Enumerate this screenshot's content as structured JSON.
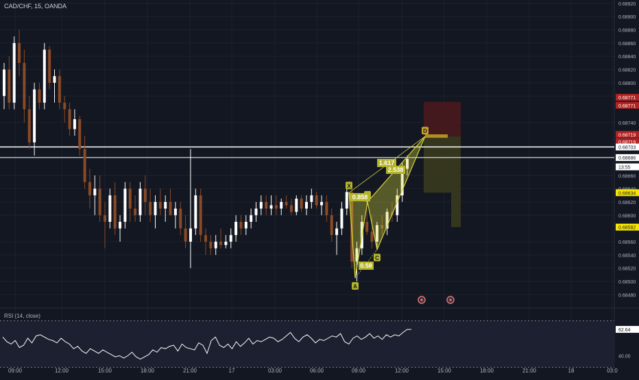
{
  "header": {
    "symbol_title": "CAD/CHF, 15, OANDA"
  },
  "rsi_panel": {
    "title": "RSI (14, close)",
    "current_label": "62.64",
    "level_label": "40.00"
  },
  "chart_data": {
    "type": "candlestick",
    "colors": {
      "background": "#131722",
      "grid": "#1e222d",
      "up": "#ffffff",
      "down": "#8b4a26",
      "pattern": "#d4d43a",
      "target_zone": "#4a1a1e",
      "stop_zone": "#3a3a1e",
      "red_tag": "#b22222",
      "yellow_tag": "#f7e600"
    },
    "x_tick_labels": [
      "09:00",
      "12:00",
      "15:00",
      "18:00",
      "21:00",
      "17",
      "03:00",
      "06:00",
      "09:00",
      "12:00",
      "15:00",
      "18:00",
      "21:00",
      "18",
      "03:0"
    ],
    "y_tick_labels": [
      "0.68920",
      "0.68900",
      "0.68880",
      "0.68860",
      "0.68840",
      "0.68820",
      "0.68800",
      "0.68780",
      "0.68740",
      "0.68660",
      "0.68640",
      "0.68620",
      "0.68600",
      "0.68560",
      "0.68540",
      "0.68520",
      "0.68500",
      "0.68480"
    ],
    "ylim": [
      0.6847,
      0.68925
    ],
    "price_tags": [
      {
        "label": "0.68771",
        "value": 0.68778,
        "style": "red"
      },
      {
        "label": "0.68771",
        "value": 0.68766,
        "style": "red"
      },
      {
        "label": "0.68719",
        "value": 0.68722,
        "style": "red"
      },
      {
        "label": "0.68719",
        "value": 0.68711,
        "style": "red"
      },
      {
        "label": "0.68703",
        "value": 0.68703,
        "style": "light"
      },
      {
        "label": "0.68686",
        "value": 0.68687,
        "style": "light"
      },
      {
        "label": "13:55",
        "value": 0.68673,
        "style": "light"
      },
      {
        "label": "0.68634",
        "value": 0.68634,
        "style": "yellow"
      },
      {
        "label": "0.68582",
        "value": 0.68582,
        "style": "yellow"
      }
    ],
    "horizontal_lines": [
      {
        "value": 0.68703,
        "width": 1.5
      },
      {
        "value": 0.68687,
        "width": 1
      }
    ],
    "candles": [
      [
        0.6878,
        0.6883,
        0.6876,
        0.6882
      ],
      [
        0.6882,
        0.6884,
        0.6876,
        0.6877
      ],
      [
        0.6877,
        0.6887,
        0.6876,
        0.6886
      ],
      [
        0.6886,
        0.6888,
        0.6881,
        0.6883
      ],
      [
        0.6883,
        0.6885,
        0.6874,
        0.6876
      ],
      [
        0.6876,
        0.6878,
        0.687,
        0.6871
      ],
      [
        0.6871,
        0.688,
        0.6869,
        0.6879
      ],
      [
        0.6879,
        0.688,
        0.6876,
        0.6877
      ],
      [
        0.6877,
        0.6886,
        0.6876,
        0.6885
      ],
      [
        0.6885,
        0.68855,
        0.6879,
        0.688
      ],
      [
        0.688,
        0.6882,
        0.6877,
        0.6881
      ],
      [
        0.6881,
        0.6882,
        0.6876,
        0.6877
      ],
      [
        0.6877,
        0.6878,
        0.6874,
        0.6876
      ],
      [
        0.6876,
        0.6877,
        0.6872,
        0.6873
      ],
      [
        0.6873,
        0.6876,
        0.6872,
        0.68745
      ],
      [
        0.68745,
        0.6875,
        0.6869,
        0.687
      ],
      [
        0.687,
        0.6872,
        0.6864,
        0.6865
      ],
      [
        0.6865,
        0.6867,
        0.6861,
        0.6863
      ],
      [
        0.6863,
        0.6866,
        0.686,
        0.6864
      ],
      [
        0.6864,
        0.6866,
        0.6859,
        0.686
      ],
      [
        0.686,
        0.6862,
        0.6855,
        0.6859
      ],
      [
        0.6859,
        0.6864,
        0.6858,
        0.6863
      ],
      [
        0.6863,
        0.6865,
        0.6857,
        0.6858
      ],
      [
        0.6858,
        0.686,
        0.6856,
        0.6859
      ],
      [
        0.6859,
        0.6865,
        0.6858,
        0.6864
      ],
      [
        0.6864,
        0.6865,
        0.6859,
        0.6861
      ],
      [
        0.6861,
        0.6863,
        0.6859,
        0.686
      ],
      [
        0.686,
        0.6865,
        0.6859,
        0.6864
      ],
      [
        0.6864,
        0.6866,
        0.686,
        0.6862
      ],
      [
        0.6862,
        0.6864,
        0.6859,
        0.686
      ],
      [
        0.686,
        0.6863,
        0.6858,
        0.6862
      ],
      [
        0.6862,
        0.6864,
        0.686,
        0.6861
      ],
      [
        0.6861,
        0.6863,
        0.6859,
        0.6862
      ],
      [
        0.6862,
        0.6864,
        0.686,
        0.686
      ],
      [
        0.686,
        0.6862,
        0.6858,
        0.6861
      ],
      [
        0.6861,
        0.6862,
        0.6857,
        0.6858
      ],
      [
        0.6858,
        0.686,
        0.6855,
        0.6856
      ],
      [
        0.6856,
        0.687,
        0.6852,
        0.6858
      ],
      [
        0.6858,
        0.6864,
        0.6857,
        0.6863
      ],
      [
        0.6863,
        0.6864,
        0.6856,
        0.6857
      ],
      [
        0.6857,
        0.6858,
        0.6854,
        0.6856
      ],
      [
        0.6856,
        0.6857,
        0.6854,
        0.6855
      ],
      [
        0.6855,
        0.6857,
        0.6854,
        0.6856
      ],
      [
        0.6856,
        0.6858,
        0.6855,
        0.68555
      ],
      [
        0.68555,
        0.6857,
        0.6855,
        0.6856
      ],
      [
        0.6856,
        0.6858,
        0.6855,
        0.6857
      ],
      [
        0.6857,
        0.686,
        0.6856,
        0.6859
      ],
      [
        0.6859,
        0.686,
        0.6857,
        0.6858
      ],
      [
        0.6858,
        0.686,
        0.6857,
        0.6859
      ],
      [
        0.6859,
        0.6861,
        0.6858,
        0.686
      ],
      [
        0.686,
        0.6862,
        0.6859,
        0.6861
      ],
      [
        0.6861,
        0.6863,
        0.686,
        0.6862
      ],
      [
        0.6862,
        0.6863,
        0.686,
        0.6861
      ],
      [
        0.6861,
        0.6863,
        0.686,
        0.68615
      ],
      [
        0.68615,
        0.6863,
        0.686,
        0.6861
      ],
      [
        0.6861,
        0.68625,
        0.686,
        0.6862
      ],
      [
        0.6862,
        0.6863,
        0.6861,
        0.68615
      ],
      [
        0.68615,
        0.68625,
        0.686,
        0.68605
      ],
      [
        0.68605,
        0.6863,
        0.686,
        0.68625
      ],
      [
        0.68625,
        0.6863,
        0.68605,
        0.6861
      ],
      [
        0.6861,
        0.6863,
        0.686,
        0.6862
      ],
      [
        0.6862,
        0.6864,
        0.6861,
        0.6863
      ],
      [
        0.6863,
        0.68635,
        0.6861,
        0.68615
      ],
      [
        0.68615,
        0.6863,
        0.686,
        0.6862
      ],
      [
        0.6862,
        0.6863,
        0.6859,
        0.686
      ],
      [
        0.686,
        0.6861,
        0.6856,
        0.6857
      ],
      [
        0.6857,
        0.6859,
        0.6854,
        0.6858
      ],
      [
        0.6858,
        0.6862,
        0.6857,
        0.6861
      ],
      [
        0.6861,
        0.6864,
        0.686,
        0.68635
      ],
      [
        0.68635,
        0.6864,
        0.6852,
        0.6853
      ],
      [
        0.6853,
        0.6856,
        0.685,
        0.6855
      ],
      [
        0.6855,
        0.686,
        0.6854,
        0.6859
      ],
      [
        0.6859,
        0.6862,
        0.6857,
        0.68575
      ],
      [
        0.68575,
        0.686,
        0.6855,
        0.6856
      ],
      [
        0.6856,
        0.6859,
        0.6855,
        0.68585
      ],
      [
        0.68585,
        0.686,
        0.6857,
        0.6858
      ],
      [
        0.6858,
        0.6861,
        0.6857,
        0.68605
      ],
      [
        0.68605,
        0.6862,
        0.6859,
        0.686
      ],
      [
        0.686,
        0.6864,
        0.6859,
        0.6863
      ],
      [
        0.6863,
        0.6868,
        0.6862,
        0.6867
      ],
      [
        0.6867,
        0.6869,
        0.6866,
        0.68685
      ]
    ],
    "harmonic_pattern": {
      "points": [
        {
          "label": "X",
          "value": 0.68634
        },
        {
          "label": "A",
          "value": 0.68505
        },
        {
          "label": "B",
          "value": 0.6862
        },
        {
          "label": "C",
          "value": 0.68548
        },
        {
          "label": "D",
          "value": 0.68719
        }
      ],
      "ratio_labels": [
        {
          "label": "0.858"
        },
        {
          "label": "0.58"
        },
        {
          "label": "1.617"
        },
        {
          "label": "2.538"
        }
      ]
    },
    "position": {
      "entry": 0.68719,
      "stop": 0.68771,
      "target1": 0.68634,
      "target2": 0.68582
    },
    "rsi": {
      "ylim": [
        35,
        75
      ],
      "levels": [
        70,
        30
      ],
      "values": [
        56,
        52,
        50,
        53,
        47,
        49,
        55,
        51,
        57,
        58,
        56,
        54,
        53,
        51,
        55,
        52,
        50,
        46,
        48,
        44,
        42,
        46,
        44,
        42,
        45,
        43,
        41,
        39,
        40,
        38,
        40,
        43,
        39,
        37,
        39,
        41,
        45,
        43,
        47,
        46,
        48,
        49,
        44,
        50,
        47,
        46,
        45,
        51,
        49,
        42,
        53,
        56,
        49,
        47,
        50,
        46,
        52,
        48,
        51,
        55,
        50,
        53,
        52,
        54,
        56,
        55,
        52,
        54,
        57,
        60,
        55,
        52,
        56,
        58,
        55,
        51,
        54,
        53,
        55,
        57,
        56,
        59,
        52,
        50,
        55,
        57,
        54,
        56,
        59,
        55,
        57,
        54,
        58,
        56,
        58,
        57,
        60,
        62.6,
        62.6
      ]
    }
  }
}
